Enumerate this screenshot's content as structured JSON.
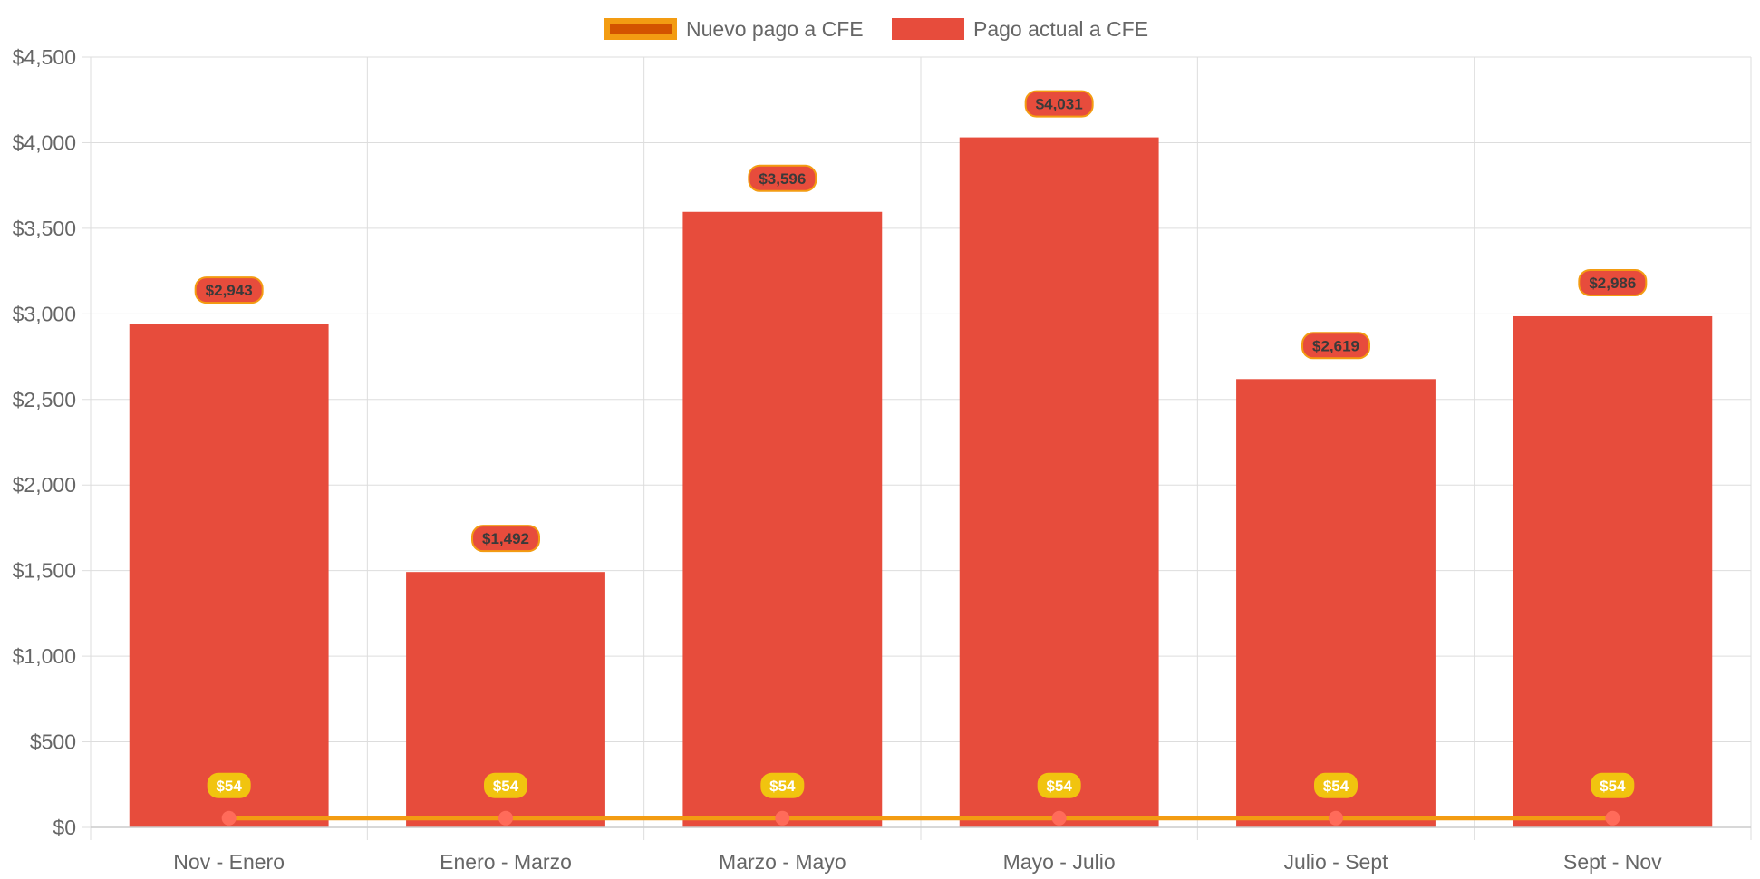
{
  "chart_data": {
    "type": "bar",
    "categories": [
      "Nov - Enero",
      "Enero - Marzo",
      "Marzo - Mayo",
      "Mayo - Julio",
      "Julio - Sept",
      "Sept - Nov"
    ],
    "series": [
      {
        "name": "Nuevo pago a CFE",
        "type": "line",
        "values": [
          54,
          54,
          54,
          54,
          54,
          54
        ],
        "labels": [
          "$54",
          "$54",
          "$54",
          "$54",
          "$54",
          "$54"
        ],
        "color": "#f39c12",
        "point_color": "#ff6b5a",
        "label_color": "#f1c40f"
      },
      {
        "name": "Pago actual a CFE",
        "type": "bar",
        "values": [
          2943,
          1492,
          3596,
          4031,
          2619,
          2986
        ],
        "labels": [
          "$2,943",
          "$1,492",
          "$3,596",
          "$4,031",
          "$2,619",
          "$2,986"
        ],
        "color": "#e74c3c",
        "label_border": "#f39c12"
      }
    ],
    "ylim": [
      0,
      4500
    ],
    "yticks": [
      0,
      500,
      1000,
      1500,
      2000,
      2500,
      3000,
      3500,
      4000,
      4500
    ],
    "ytick_labels": [
      "$0",
      "$500",
      "$1,000",
      "$1,500",
      "$2,000",
      "$2,500",
      "$3,000",
      "$3,500",
      "$4,000",
      "$4,500"
    ],
    "legend": {
      "position": "top",
      "items": [
        {
          "label": "Nuevo pago a CFE",
          "fill": "#d35400",
          "border": "#f39c12"
        },
        {
          "label": "Pago actual a CFE",
          "fill": "#e74c3c",
          "border": "#e74c3c"
        }
      ]
    },
    "grid": true,
    "title": "",
    "xlabel": "",
    "ylabel": ""
  }
}
